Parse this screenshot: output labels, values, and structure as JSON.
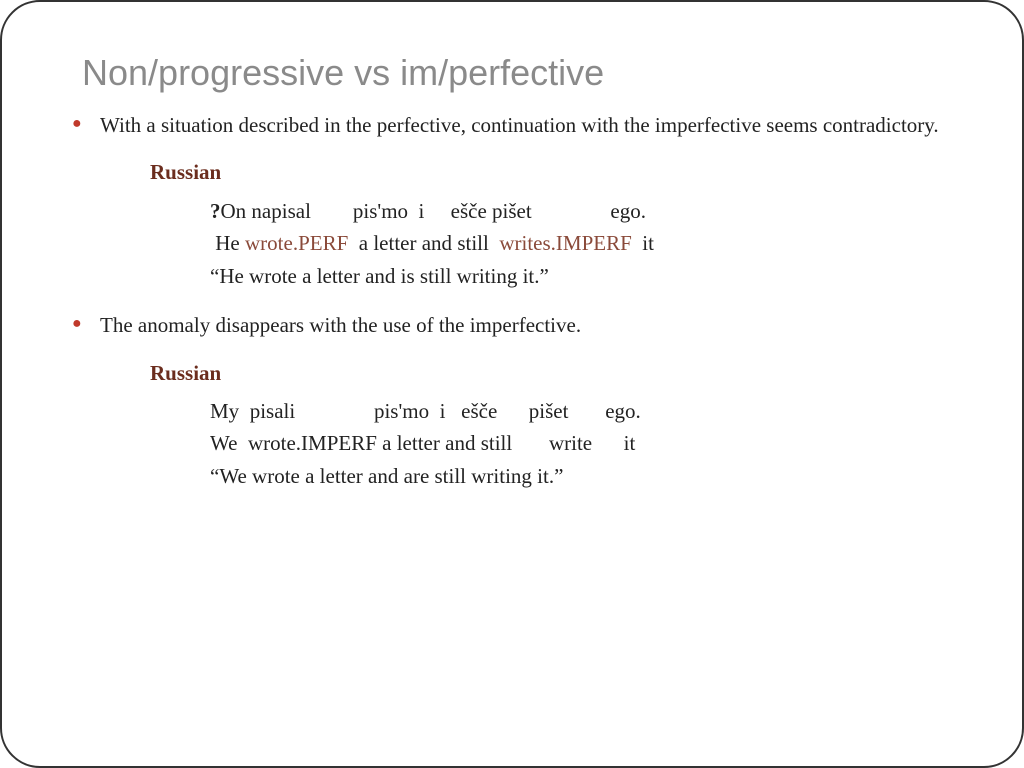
{
  "title": "Non/progressive vs im/perfective",
  "bullets": [
    "With a situation described in the perfective, continuation with the imperfective seems contradictory.",
    "The anomaly disappears with the use of the imperfective."
  ],
  "example1": {
    "lang": "Russian",
    "line1": {
      "q": "?",
      "c1": "On napisal",
      "c2": "pis'mo",
      "c3": "i",
      "c4": "ešče pišet",
      "c5": "ego."
    },
    "line2": {
      "c1a": " He ",
      "c1b": "wrote.PERF",
      "c2": "  a letter",
      "c3": "and",
      "c4a": "still  ",
      "c4b": "writes.IMPERF",
      "c5": "  it"
    },
    "trans": "“He wrote a letter and is still writing it.”"
  },
  "example2": {
    "lang": "Russian",
    "line1": {
      "c1": "My",
      "c2": "pisali",
      "c3": "pis'mo",
      "c4": "i",
      "c5": "ešče",
      "c6": "pišet",
      "c7": "ego."
    },
    "line2": {
      "c1": "We",
      "c2": "wrote.IMPERF",
      "c3": "a letter",
      "c4": "and",
      "c5": "still",
      "c6": "write",
      "c7": "it"
    },
    "trans": "“We wrote a letter and are still writing it.”"
  },
  "colors": {
    "bullet": "#c0392b",
    "title": "#8a8a8a",
    "lang_label": "#6b2d1e",
    "accent": "#8a4a3a",
    "text": "#222222",
    "border": "#333333",
    "background": "#ffffff"
  },
  "typography": {
    "title_font": "Verdana",
    "title_size_pt": 27,
    "body_font": "Georgia",
    "body_size_pt": 16
  }
}
